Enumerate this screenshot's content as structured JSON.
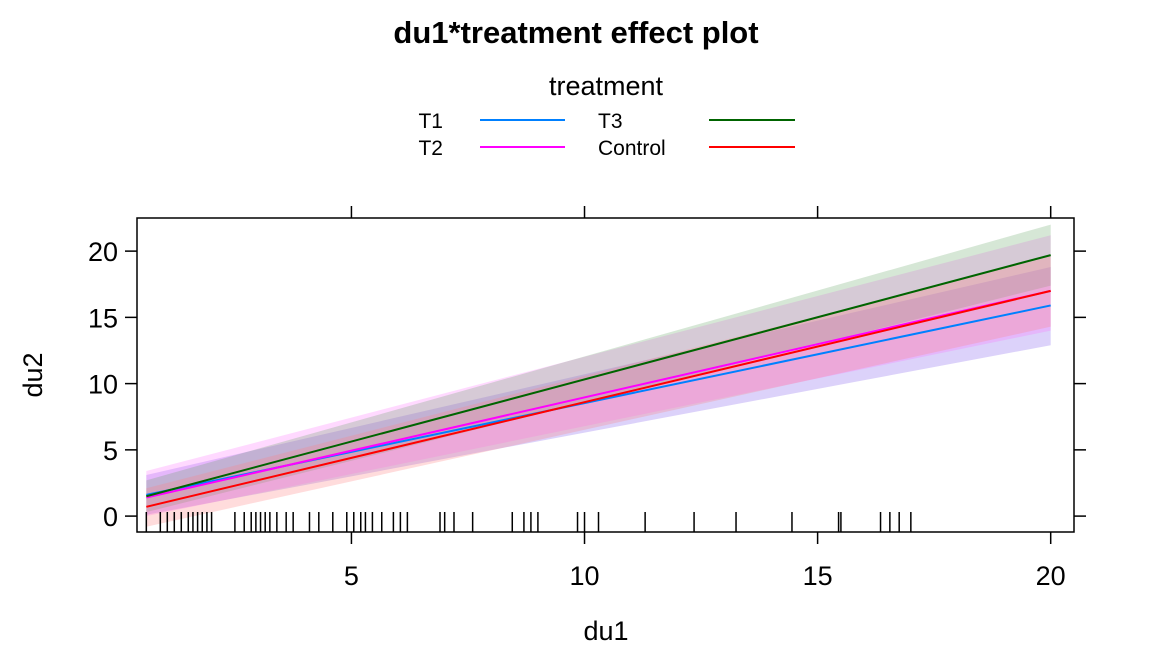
{
  "chart_data": {
    "type": "line",
    "title": "du1*treatment effect plot",
    "xlabel": "du1",
    "ylabel": "du2",
    "xlim": [
      0.4,
      20.5
    ],
    "ylim": [
      -1.2,
      22.5
    ],
    "x_ticks": [
      5,
      10,
      15,
      20
    ],
    "y_ticks": [
      0,
      5,
      10,
      15,
      20
    ],
    "grid": false,
    "legend": {
      "title": "treatment",
      "placement": "top",
      "entries": [
        "T1",
        "T2",
        "T3",
        "Control"
      ]
    },
    "series": [
      {
        "name": "T1",
        "color": "#0080ff",
        "band_color": "#9a7ff2",
        "band_opacity": 0.35,
        "x": [
          0.6,
          20
        ],
        "y": [
          1.6,
          15.9
        ],
        "lower": [
          0.1,
          12.9
        ],
        "upper": [
          3.1,
          18.8
        ]
      },
      {
        "name": "T2",
        "color": "#ff00ff",
        "band_color": "#ff66ff",
        "band_opacity": 0.25,
        "x": [
          0.6,
          20
        ],
        "y": [
          1.4,
          17.0
        ],
        "lower": [
          0.0,
          14.0
        ],
        "upper": [
          3.4,
          21.2
        ]
      },
      {
        "name": "T3",
        "color": "#006400",
        "band_color": "#5aa05a",
        "band_opacity": 0.25,
        "x": [
          0.6,
          20
        ],
        "y": [
          1.5,
          19.7
        ],
        "lower": [
          0.3,
          17.4
        ],
        "upper": [
          2.7,
          22.0
        ]
      },
      {
        "name": "Control",
        "color": "#ff0000",
        "band_color": "#ff8080",
        "band_opacity": 0.28,
        "x": [
          0.6,
          20
        ],
        "y": [
          0.7,
          17.0
        ],
        "lower": [
          -0.8,
          14.3
        ],
        "upper": [
          2.1,
          19.6
        ]
      }
    ],
    "rug_x": [
      0.6,
      0.9,
      1.05,
      1.2,
      1.35,
      1.5,
      1.6,
      1.7,
      1.8,
      1.9,
      2.0,
      2.5,
      2.7,
      2.85,
      2.95,
      3.05,
      3.15,
      3.25,
      3.4,
      3.6,
      3.75,
      4.1,
      4.3,
      4.6,
      4.9,
      5.05,
      5.2,
      5.3,
      5.45,
      5.65,
      5.9,
      6.05,
      6.2,
      6.9,
      7.0,
      7.2,
      7.6,
      8.45,
      8.7,
      8.85,
      9.0,
      9.85,
      10.0,
      10.3,
      11.3,
      12.35,
      13.25,
      14.45,
      15.45,
      15.5,
      16.35,
      16.55,
      16.75,
      17.0
    ]
  }
}
